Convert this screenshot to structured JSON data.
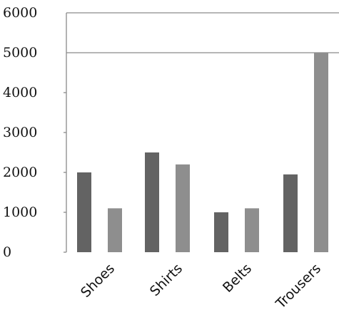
{
  "chart_data": {
    "type": "bar",
    "categories": [
      "Shoes",
      "Shirts",
      "Belts",
      "Trousers"
    ],
    "series": [
      {
        "values": [
          2000,
          2500,
          1000,
          1950
        ],
        "color": "#636363"
      },
      {
        "values": [
          1100,
          2200,
          1100,
          5000
        ],
        "color": "#8e8e8e"
      }
    ],
    "ylim": [
      0,
      6000
    ],
    "yticks": [
      0,
      1000,
      2000,
      3000,
      4000,
      5000,
      6000
    ],
    "ytick_labels": [
      "0",
      "1000",
      "2000",
      "3000",
      "4000",
      "5000",
      "6000"
    ],
    "gridlines_at": [
      5000,
      6000
    ],
    "legend": "none"
  }
}
